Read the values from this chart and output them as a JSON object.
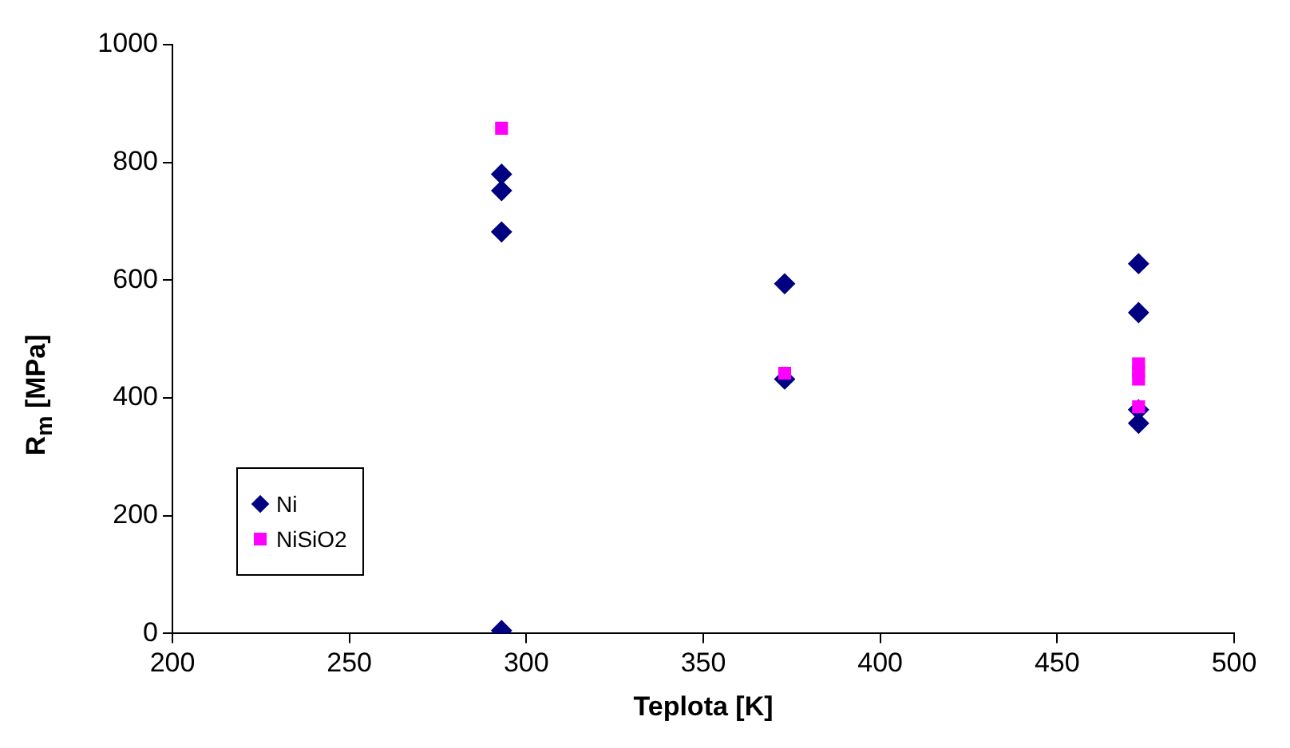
{
  "chart_data": {
    "type": "scatter",
    "xlabel": "Teplota [K]",
    "ylabel": "R$_{m}$ [MPa]",
    "xlim": [
      200,
      500
    ],
    "xticks": [
      200,
      250,
      300,
      350,
      400,
      450,
      500
    ],
    "ylim": [
      0,
      1000
    ],
    "yticks": [
      0,
      200,
      400,
      600,
      800,
      {
        "value": 1000,
        "label": "1000"
      }
    ],
    "grid": false,
    "legend": "left",
    "series": [
      {
        "name": "Ni",
        "color": "#000080",
        "marker": "diamond",
        "x": [
          293,
          293,
          293,
          293,
          373,
          373,
          473,
          473,
          473,
          473
        ],
        "values": [
          780,
          752,
          682,
          5,
          594,
          432,
          628,
          545,
          380,
          357
        ]
      },
      {
        "name": "NiSiO2",
        "color": "#ff00ff",
        "marker": "square",
        "x": [
          293,
          373,
          473,
          473,
          473,
          473
        ],
        "values": [
          858,
          442,
          458,
          445,
          432,
          385
        ]
      }
    ]
  }
}
